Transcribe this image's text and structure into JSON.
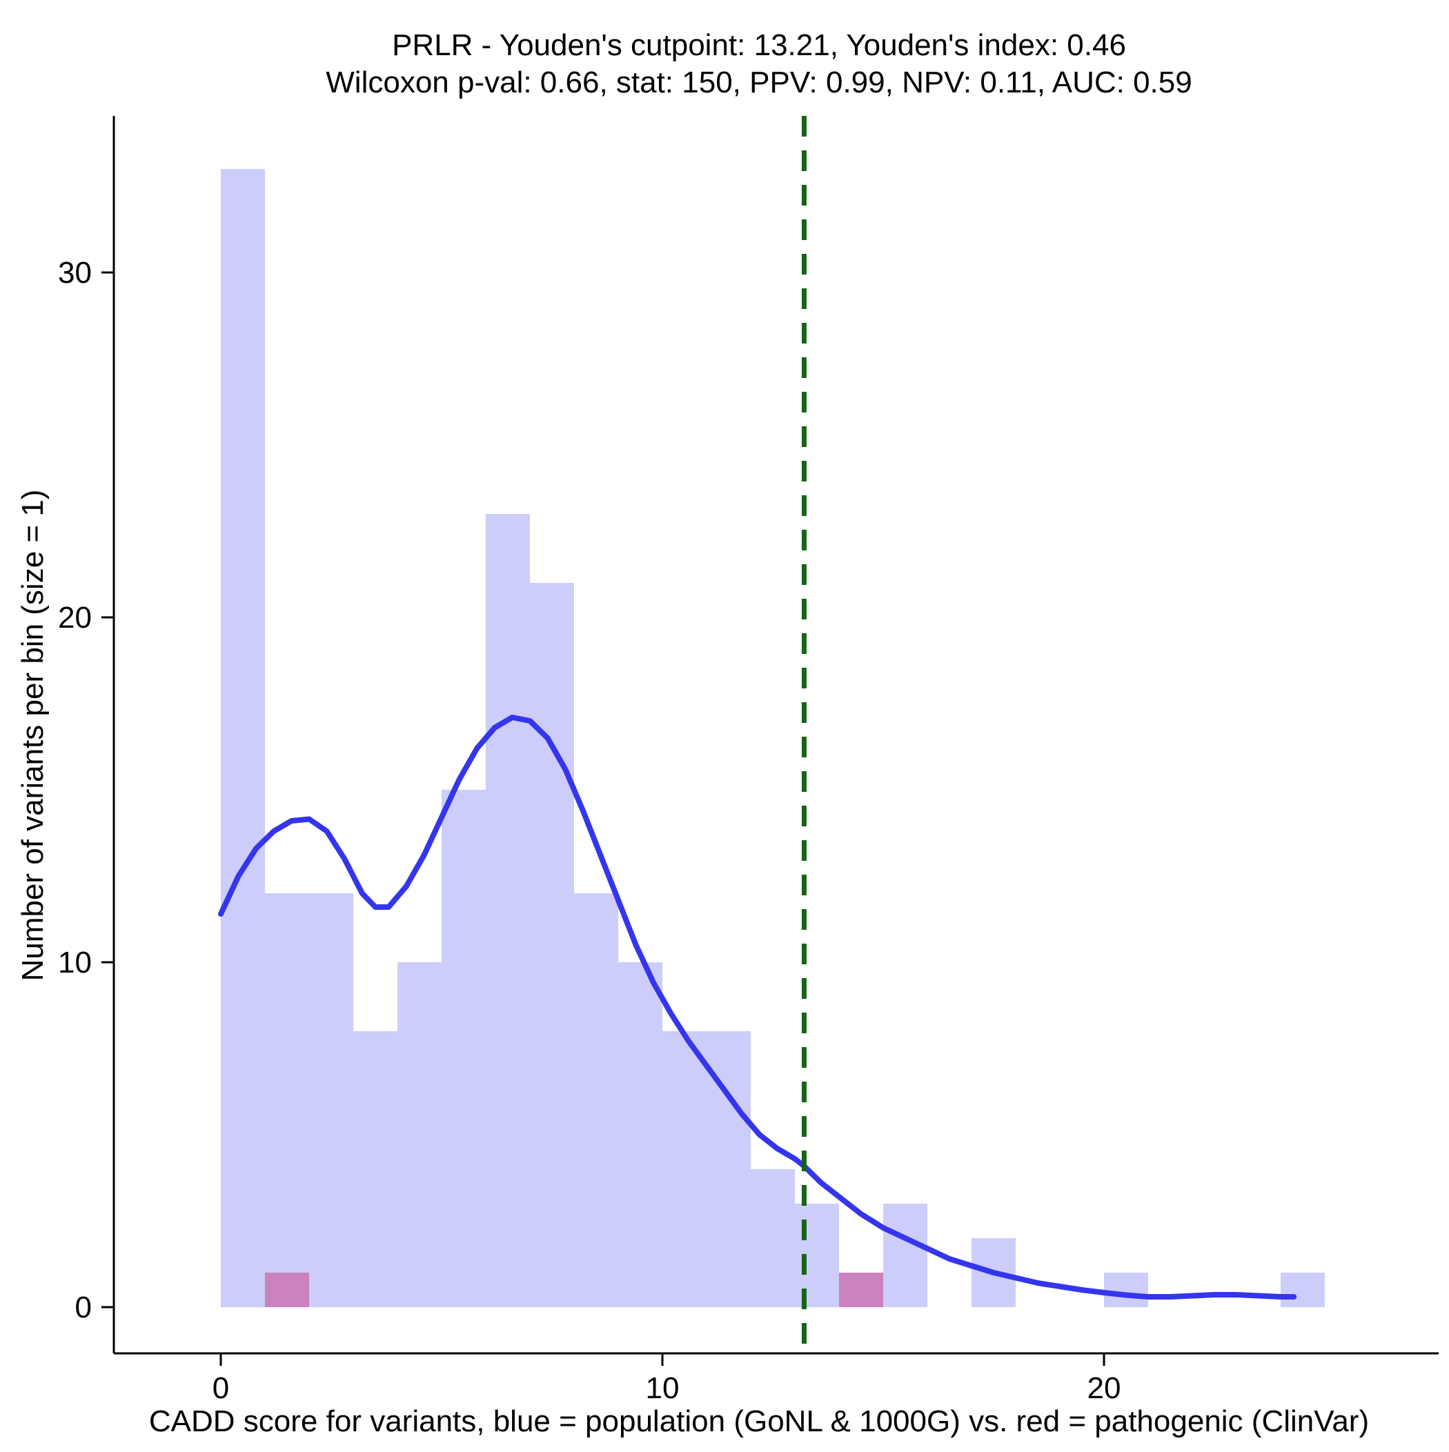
{
  "chart_data": {
    "type": "bar",
    "subtype": "histogram_with_density_overlay",
    "title_line1": "PRLR - Youden's cutpoint: 13.21, Youden's index: 0.46",
    "title_line2": "Wilcoxon p-val: 0.66, stat: 150, PPV: 0.99, NPV: 0.11, AUC: 0.59",
    "xlabel": "CADD score for variants, blue = population (GoNL & 1000G) vs. red = pathogenic (ClinVar)",
    "ylabel": "Number of variants per bin (size = 1)",
    "x_ticks": [
      0,
      10,
      20
    ],
    "y_ticks": [
      0,
      10,
      20,
      30
    ],
    "xlim": [
      -2.4,
      27.6
    ],
    "ylim": [
      -1.3,
      34.5
    ],
    "bin_width": 1,
    "grid": "off",
    "legend": "none",
    "stats": {
      "gene": "PRLR",
      "youden_cutpoint": 13.21,
      "youden_index": 0.46,
      "wilcoxon_p_val": 0.66,
      "wilcoxon_stat": 150,
      "ppv": 0.99,
      "npv": 0.11,
      "auc": 0.59
    },
    "series": [
      {
        "name": "population (GoNL & 1000G)",
        "color": "rgba(88, 88, 242, 0.30)",
        "bins": [
          [
            0,
            33
          ],
          [
            1,
            12
          ],
          [
            2,
            12
          ],
          [
            3,
            8
          ],
          [
            4,
            10
          ],
          [
            5,
            15
          ],
          [
            6,
            23
          ],
          [
            7,
            21
          ],
          [
            8,
            12
          ],
          [
            9,
            10
          ],
          [
            10,
            8
          ],
          [
            11,
            8
          ],
          [
            12,
            4
          ],
          [
            13,
            3
          ],
          [
            14,
            1
          ],
          [
            15,
            3
          ],
          [
            17,
            2
          ],
          [
            20,
            1
          ],
          [
            24,
            1
          ]
        ]
      },
      {
        "name": "pathogenic (ClinVar)",
        "color": "rgba(205, 40, 110, 0.45)",
        "bins": [
          [
            1,
            1
          ],
          [
            14,
            1
          ]
        ]
      }
    ],
    "density_curve": {
      "color": "#3535ee",
      "points": [
        [
          0,
          11.4
        ],
        [
          0.4,
          12.5
        ],
        [
          0.8,
          13.3
        ],
        [
          1.2,
          13.8
        ],
        [
          1.6,
          14.1
        ],
        [
          2.0,
          14.15
        ],
        [
          2.4,
          13.8
        ],
        [
          2.8,
          13.0
        ],
        [
          3.2,
          12.0
        ],
        [
          3.5,
          11.6
        ],
        [
          3.8,
          11.6
        ],
        [
          4.2,
          12.2
        ],
        [
          4.6,
          13.1
        ],
        [
          5.0,
          14.2
        ],
        [
          5.4,
          15.3
        ],
        [
          5.8,
          16.2
        ],
        [
          6.2,
          16.8
        ],
        [
          6.6,
          17.1
        ],
        [
          7.0,
          17.0
        ],
        [
          7.4,
          16.5
        ],
        [
          7.8,
          15.6
        ],
        [
          8.2,
          14.4
        ],
        [
          8.6,
          13.1
        ],
        [
          9.0,
          11.8
        ],
        [
          9.4,
          10.5
        ],
        [
          9.8,
          9.4
        ],
        [
          10.2,
          8.5
        ],
        [
          10.6,
          7.7
        ],
        [
          11.0,
          7.0
        ],
        [
          11.4,
          6.3
        ],
        [
          11.8,
          5.6
        ],
        [
          12.2,
          5.0
        ],
        [
          12.6,
          4.6
        ],
        [
          13.0,
          4.3
        ],
        [
          13.2,
          4.1
        ],
        [
          13.6,
          3.6
        ],
        [
          14.0,
          3.2
        ],
        [
          14.5,
          2.7
        ],
        [
          15.0,
          2.3
        ],
        [
          15.5,
          2.0
        ],
        [
          16.0,
          1.7
        ],
        [
          16.5,
          1.4
        ],
        [
          17.0,
          1.2
        ],
        [
          17.5,
          1.0
        ],
        [
          18.0,
          0.85
        ],
        [
          18.5,
          0.7
        ],
        [
          19.0,
          0.6
        ],
        [
          19.5,
          0.5
        ],
        [
          20.0,
          0.42
        ],
        [
          20.5,
          0.35
        ],
        [
          21.0,
          0.3
        ],
        [
          21.5,
          0.3
        ],
        [
          22.0,
          0.33
        ],
        [
          22.5,
          0.36
        ],
        [
          23.0,
          0.36
        ],
        [
          23.5,
          0.33
        ],
        [
          24.0,
          0.3
        ],
        [
          24.3,
          0.3
        ]
      ]
    },
    "cutpoint_line": {
      "x": 13.21,
      "color": "#166416",
      "style": "dashed"
    },
    "axis_color": "#000000"
  }
}
